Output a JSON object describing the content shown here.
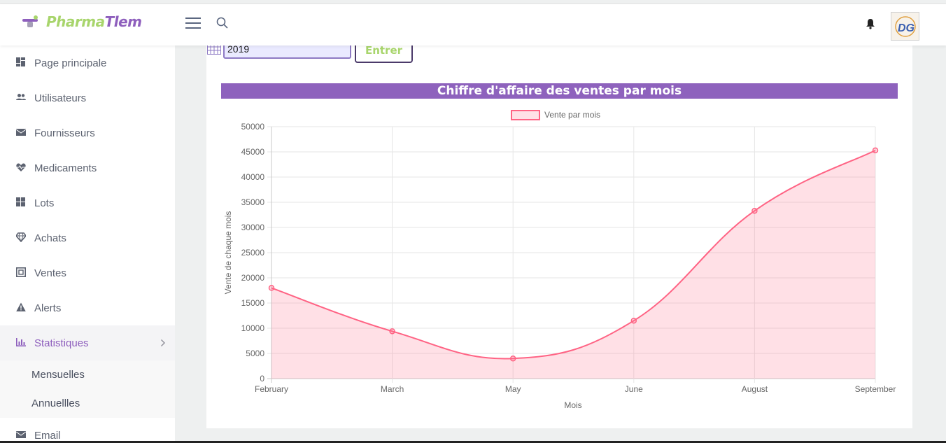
{
  "app": {
    "name_part1": "Pharma",
    "name_part2": "Tlem"
  },
  "avatar": {
    "text": "DG"
  },
  "sidebar": {
    "items": [
      {
        "label": "Page principale",
        "icon": "dashboard-icon"
      },
      {
        "label": "Utilisateurs",
        "icon": "users-icon"
      },
      {
        "label": "Fournisseurs",
        "icon": "mail-icon"
      },
      {
        "label": "Medicaments",
        "icon": "heartbeat-icon"
      },
      {
        "label": "Lots",
        "icon": "boxes-icon"
      },
      {
        "label": "Achats",
        "icon": "diamond-icon"
      },
      {
        "label": "Ventes",
        "icon": "register-icon"
      },
      {
        "label": "Alerts",
        "icon": "warning-icon"
      },
      {
        "label": "Statistiques",
        "icon": "bar-chart-icon"
      }
    ],
    "submenu": [
      {
        "label": "Mensuelles"
      },
      {
        "label": "Annuellles"
      }
    ],
    "partial_item": {
      "label": "Email"
    }
  },
  "form": {
    "year_value": "2019",
    "submit_label": "Entrer"
  },
  "colors": {
    "accent_purple": "#8e62bd",
    "logo_green": "#a8d56c",
    "line": "#ff6384",
    "fill": "rgba(255,99,132,0.2)"
  },
  "chart_data": {
    "type": "area",
    "title": "Chiffre d'affaire des ventes par mois",
    "legend": "Vente par mois",
    "legend_position": "top",
    "xlabel": "Mois",
    "ylabel": "Vente de chaque mois",
    "categories": [
      "February",
      "March",
      "May",
      "June",
      "August",
      "September"
    ],
    "series": [
      {
        "name": "Vente par mois",
        "values": [
          18000,
          9400,
          4000,
          11500,
          33300,
          45300
        ]
      }
    ],
    "ylim": [
      0,
      50000
    ],
    "yticks": [
      0,
      5000,
      10000,
      15000,
      20000,
      25000,
      30000,
      35000,
      40000,
      45000,
      50000
    ],
    "grid": true
  }
}
